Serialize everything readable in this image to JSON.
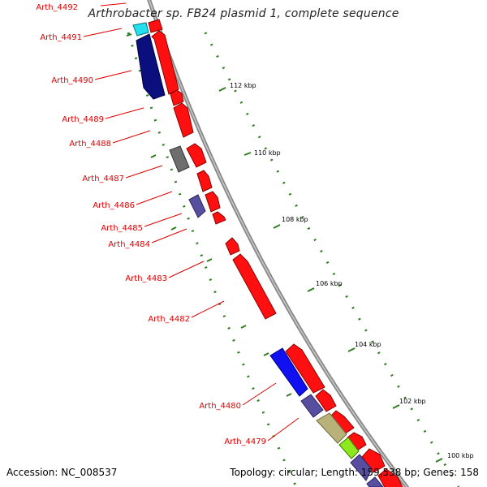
{
  "header": {
    "title": "Arthrobacter sp. FB24 plasmid 1, complete sequence"
  },
  "footer": {
    "accession": "Accession: NC_008537",
    "summary": "Topology: circular; Length: 159,538 bp; Genes: 158"
  },
  "colors": {
    "backbone": "#888888",
    "forward_gene": "#ff0000",
    "tick": "#2f7d1e",
    "label": "#e00000"
  },
  "scale_labels": [
    {
      "kbp": 112,
      "text": "112 kbp"
    },
    {
      "kbp": 110,
      "text": "110 kbp"
    },
    {
      "kbp": 108,
      "text": "108 kbp"
    },
    {
      "kbp": 106,
      "text": "106 kbp"
    },
    {
      "kbp": 104,
      "text": "104 kbp"
    },
    {
      "kbp": 102,
      "text": "102 kbp"
    },
    {
      "kbp": 100,
      "text": "100 kbp"
    }
  ],
  "gene_labels": [
    "Arth_4492",
    "Arth_4491",
    "Arth_4490",
    "Arth_4489",
    "Arth_4488",
    "Arth_4487",
    "Arth_4486",
    "Arth_4485",
    "Arth_4484",
    "Arth_4483",
    "Arth_4482",
    "Arth_4480",
    "Arth_4479"
  ],
  "reverse_gene_colors": [
    "cyan",
    "navy",
    "gray",
    "slateblue",
    "blue",
    "slateblue",
    "khaki",
    "lime",
    "slateblue"
  ]
}
